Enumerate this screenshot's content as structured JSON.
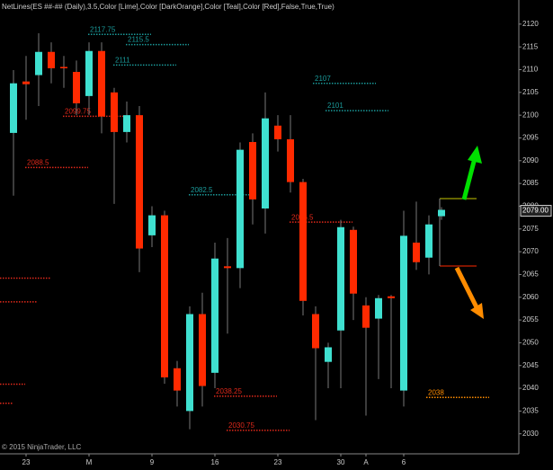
{
  "chart_data": {
    "type": "candlestick",
    "title": "NetLines(ES ##-## (Daily),3.5,Color [Lime],Color [DarkOrange],Color [Teal],Color [Red],False,True,True)",
    "footer": "© 2015 NinjaTrader, LLC",
    "categories": [
      null,
      "23",
      null,
      null,
      null,
      null,
      "M",
      null,
      null,
      null,
      null,
      "9",
      null,
      null,
      null,
      null,
      "16",
      null,
      null,
      null,
      null,
      "23",
      null,
      null,
      null,
      null,
      "30",
      null,
      "A",
      null,
      null,
      "6",
      null,
      null,
      null
    ],
    "open": [
      2096.1,
      2107.4,
      2108.8,
      2113.9,
      2110.6,
      2109.5,
      2104.2,
      2114.1,
      2105,
      2096.3,
      2100,
      2073.6,
      2078,
      2044.4,
      2035,
      2056.3,
      2043.4,
      2066.8,
      2066.4,
      2094.1,
      2079.5,
      2097.7,
      2094.7,
      2085.3,
      2056.3,
      2045.8,
      2052.7,
      2074.8,
      2058.2,
      2055.3,
      2060.2,
      2039.5,
      2072,
      2068.7,
      2077.8
    ],
    "high": [
      2109.9,
      2113,
      2118,
      2116,
      2113,
      2112,
      2116,
      2116,
      2106,
      2103,
      2102,
      2080,
      2079,
      2046,
      2058,
      2061,
      2072,
      2073,
      2094,
      2096,
      2105,
      2100,
      2100,
      2086,
      2058,
      2050,
      2077,
      2075.5,
      2060,
      2060.5,
      2060.5,
      2079,
      2081,
      2078,
      2079.8
    ],
    "low": [
      2082.3,
      2099,
      2102,
      2107,
      2106,
      2100,
      2100,
      2096,
      2080.5,
      2094,
      2065.5,
      2071,
      2041,
      2036,
      2031,
      2036,
      2040,
      2052,
      2062,
      2076,
      2074,
      2092,
      2083,
      2056,
      2033,
      2040,
      2040,
      2055,
      2034,
      2042,
      2040,
      2036,
      2066,
      2065,
      2077
    ],
    "close": [
      2107,
      2106.8,
      2113.9,
      2110.3,
      2110.3,
      2102.6,
      2114.1,
      2099.7,
      2096.3,
      2100,
      2070.7,
      2078,
      2042.4,
      2039.5,
      2056.3,
      2040.5,
      2068.5,
      2066.4,
      2092.4,
      2081.5,
      2099.3,
      2094.7,
      2085.3,
      2059.2,
      2048.8,
      2049,
      2075.4,
      2060.8,
      2053.3,
      2059.8,
      2059.8,
      2073.5,
      2067.7,
      2076,
      2079.2
    ],
    "up_color": "#3fe0d0",
    "down_color": "#ff2a00",
    "levels": [
      {
        "value": 2117.75,
        "label": "2117.75",
        "color": "#1a9a9a"
      },
      {
        "value": 2115.5,
        "label": "2115.5",
        "color": "#1a9a9a"
      },
      {
        "value": 2111,
        "label": "2111",
        "color": "#1a9a9a"
      },
      {
        "value": 2107,
        "label": "2107",
        "color": "#1a9a9a"
      },
      {
        "value": 2101,
        "label": "2101",
        "color": "#1a9a9a"
      },
      {
        "value": 2099.75,
        "label": "2099.75",
        "color": "#e0281a"
      },
      {
        "value": 2088.5,
        "label": "2088.5",
        "color": "#e0281a"
      },
      {
        "value": 2082.5,
        "label": "2082.5",
        "color": "#1a9a9a"
      },
      {
        "value": 2076.5,
        "label": "2076.5",
        "color": "#e0281a"
      },
      {
        "value": 2038.25,
        "label": "2038.25",
        "color": "#e0281a"
      },
      {
        "value": 2030.75,
        "label": "2030.75",
        "color": "#e0281a"
      },
      {
        "value": 2038,
        "label": "2038",
        "color": "#ff8c00"
      },
      {
        "value": 2064.2,
        "color": "#e0281a"
      },
      {
        "value": 2059,
        "color": "#e0281a"
      },
      {
        "value": 2040.9,
        "color": "#e0281a"
      },
      {
        "value": 2036.7,
        "color": "#e0281a"
      }
    ],
    "last_price": 2079,
    "last_price_label": "2079.00",
    "ylim": [
      2025.6,
      2125.3
    ],
    "yticks": [
      2030,
      2035,
      2040,
      2045,
      2050,
      2055,
      2060,
      2065,
      2070,
      2075,
      2080,
      2085,
      2090,
      2095,
      2100,
      2105,
      2110,
      2115,
      2120
    ]
  }
}
